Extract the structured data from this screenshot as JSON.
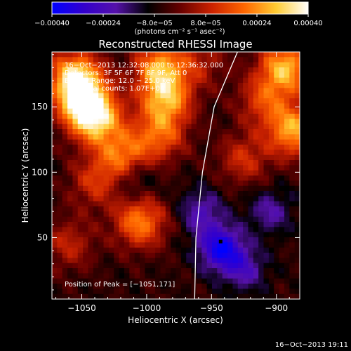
{
  "chart_data": {
    "type": "heatmap",
    "title": "Reconstructed RHESSI Image",
    "xlabel": "Heliocentric X (arcsec)",
    "ylabel": "Heliocentric Y (arcsec)",
    "xlim": [
      -1073,
      -882
    ],
    "ylim": [
      3,
      192
    ],
    "x_ticks": [
      -1050,
      -1000,
      -950,
      -900
    ],
    "x_tick_labels": [
      "−1050",
      "−1000",
      "−950",
      "−900"
    ],
    "y_ticks": [
      50,
      100,
      150
    ],
    "y_tick_labels": [
      "50",
      "100",
      "150"
    ],
    "colorbar": {
      "range": [
        -0.0004,
        0.0004
      ],
      "ticks": [
        -0.0004,
        -0.00024,
        -8e-05,
        8e-05,
        0.00024,
        0.0004
      ],
      "tick_labels": [
        "−0.00040",
        "−0.00024",
        "−8.0e−05",
        "8.0e−05",
        "0.00024",
        "0.00040"
      ],
      "label": "(photons cm⁻² s⁻¹ asec⁻²)",
      "colormap": [
        "#0000ff",
        "#3300cc",
        "#5511aa",
        "#000000",
        "#660000",
        "#cc2200",
        "#ff6600",
        "#ffcc33",
        "#ffffff"
      ]
    },
    "annotations": [
      "16−Oct−2013 12:32:08.000 to 12:36:32.000",
      "Detectors: 3F 5F 6F 7F 8F 9F, Att 0",
      "Energy Range: 12.0 − 25.0 keV",
      "Total counts: 1.07E+04"
    ],
    "peak_label": "Position of Peak = [−1051,171]",
    "peak": [
      -1051,
      171
    ],
    "sources": [
      {
        "x": -1055,
        "y": 172,
        "level": 0.0004
      },
      {
        "x": -1048,
        "y": 152,
        "level": 0.00034
      },
      {
        "x": -1038,
        "y": 140,
        "level": 0.0003
      },
      {
        "x": -1018,
        "y": 112,
        "level": 0.00026
      },
      {
        "x": -990,
        "y": 180,
        "level": 0.0003
      },
      {
        "x": -985,
        "y": 156,
        "level": 0.0003
      },
      {
        "x": -990,
        "y": 128,
        "level": 0.00022
      },
      {
        "x": -1005,
        "y": 62,
        "level": 0.00028
      },
      {
        "x": -893,
        "y": 180,
        "level": 0.00034
      },
      {
        "x": -887,
        "y": 132,
        "level": 0.00032
      },
      {
        "x": -910,
        "y": 155,
        "level": 0.00018
      },
      {
        "x": -925,
        "y": 110,
        "level": 0.00016
      },
      {
        "x": -1040,
        "y": 92,
        "level": 0.00016
      },
      {
        "x": -1060,
        "y": 45,
        "level": 0.00014
      },
      {
        "x": -958,
        "y": 185,
        "level": 0.00012
      }
    ],
    "negative_sources": [
      {
        "x": -943,
        "y": 42,
        "level": -0.0003
      },
      {
        "x": -958,
        "y": 70,
        "level": -0.00016
      },
      {
        "x": -925,
        "y": 26,
        "level": -0.00016
      },
      {
        "x": -905,
        "y": 70,
        "level": -0.00014
      },
      {
        "x": -1010,
        "y": 95,
        "level": -0.00012
      }
    ],
    "limb_curve": [
      [
        -930,
        192
      ],
      [
        -948,
        150
      ],
      [
        -957,
        100
      ],
      [
        -962,
        50
      ],
      [
        -963,
        3
      ]
    ]
  },
  "footer": {
    "timestamp": "16−Oct−2013 19:11"
  }
}
